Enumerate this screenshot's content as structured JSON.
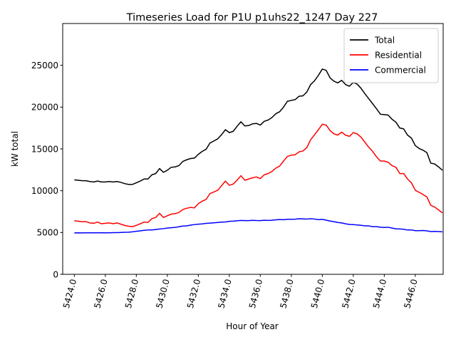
{
  "chart_data": {
    "type": "line",
    "title": "Timeseries Load for P1U p1uhs22_1247  Day 227",
    "xlabel": "Hour of Year",
    "ylabel": "kW total",
    "xlim": [
      5423.25,
      5447.8
    ],
    "ylim": [
      0,
      30000
    ],
    "xticks": [
      5424,
      5426,
      5428,
      5430,
      5432,
      5434,
      5436,
      5438,
      5440,
      5442,
      5444,
      5446
    ],
    "xtick_labels": [
      "5424.0",
      "5426.0",
      "5428.0",
      "5430.0",
      "5432.0",
      "5434.0",
      "5436.0",
      "5438.0",
      "5440.0",
      "5442.0",
      "5444.0",
      "5446.0"
    ],
    "yticks": [
      0,
      5000,
      10000,
      15000,
      20000,
      25000
    ],
    "ytick_labels": [
      "0",
      "5000",
      "10000",
      "15000",
      "20000",
      "25000"
    ],
    "legend_position": "top-right",
    "x": [
      5424.0,
      5424.25,
      5424.5,
      5424.75,
      5425.0,
      5425.25,
      5425.5,
      5425.75,
      5426.0,
      5426.25,
      5426.5,
      5426.75,
      5427.0,
      5427.25,
      5427.5,
      5427.75,
      5428.0,
      5428.25,
      5428.5,
      5428.75,
      5429.0,
      5429.25,
      5429.5,
      5429.75,
      5430.0,
      5430.25,
      5430.5,
      5430.75,
      5431.0,
      5431.25,
      5431.5,
      5431.75,
      5432.0,
      5432.25,
      5432.5,
      5432.75,
      5433.0,
      5433.25,
      5433.5,
      5433.75,
      5434.0,
      5434.25,
      5434.5,
      5434.75,
      5435.0,
      5435.25,
      5435.5,
      5435.75,
      5436.0,
      5436.25,
      5436.5,
      5436.75,
      5437.0,
      5437.25,
      5437.5,
      5437.75,
      5438.0,
      5438.25,
      5438.5,
      5438.75,
      5439.0,
      5439.25,
      5439.5,
      5439.75,
      5440.0,
      5440.25,
      5440.5,
      5440.75,
      5441.0,
      5441.25,
      5441.5,
      5441.75,
      5442.0,
      5442.25,
      5442.5,
      5442.75,
      5443.0,
      5443.25,
      5443.5,
      5443.75,
      5444.0,
      5444.25,
      5444.5,
      5444.75,
      5445.0,
      5445.25,
      5445.5,
      5445.75,
      5446.0,
      5446.25,
      5446.5,
      5446.75,
      5447.0,
      5447.25,
      5447.5,
      5447.75
    ],
    "series": [
      {
        "name": "Total",
        "color": "#000000",
        "values": [
          11300,
          11250,
          11200,
          11200,
          11100,
          11050,
          11150,
          11050,
          11050,
          11100,
          11050,
          11100,
          11000,
          10850,
          10750,
          10750,
          10950,
          11150,
          11400,
          11400,
          11900,
          12050,
          12650,
          12200,
          12450,
          12800,
          12850,
          13000,
          13500,
          13700,
          13850,
          13900,
          14350,
          14700,
          14950,
          15700,
          15950,
          16200,
          16700,
          17300,
          16950,
          17100,
          17700,
          18250,
          17750,
          17800,
          18000,
          18050,
          17850,
          18300,
          18450,
          18750,
          19200,
          19450,
          20000,
          20700,
          20800,
          20900,
          21300,
          21350,
          21800,
          22700,
          23150,
          23800,
          24550,
          24400,
          23500,
          23100,
          22900,
          23200,
          22700,
          22500,
          22950,
          22750,
          22250,
          21600,
          21000,
          20400,
          19800,
          19150,
          19100,
          19050,
          18550,
          18200,
          17500,
          17400,
          16650,
          16300,
          15400,
          15050,
          14850,
          14550,
          13300,
          13200,
          12850,
          12450
        ]
      },
      {
        "name": "Residential",
        "color": "#ff0000",
        "values": [
          6400,
          6350,
          6300,
          6300,
          6150,
          6100,
          6250,
          6050,
          6100,
          6150,
          6050,
          6150,
          6000,
          5850,
          5750,
          5700,
          5850,
          6050,
          6250,
          6200,
          6650,
          6800,
          7300,
          6800,
          7000,
          7200,
          7250,
          7400,
          7750,
          7900,
          8000,
          7950,
          8450,
          8750,
          8950,
          9650,
          9850,
          10050,
          10600,
          11150,
          10650,
          10800,
          11250,
          11800,
          11250,
          11400,
          11550,
          11650,
          11450,
          11900,
          12050,
          12300,
          12700,
          12950,
          13550,
          14100,
          14250,
          14300,
          14650,
          14750,
          15150,
          16100,
          16700,
          17300,
          17950,
          17850,
          17200,
          16800,
          16650,
          17000,
          16650,
          16500,
          16950,
          16800,
          16400,
          15800,
          15200,
          14700,
          14050,
          13550,
          13550,
          13400,
          13000,
          12800,
          12050,
          12050,
          11400,
          10950,
          10050,
          9800,
          9550,
          9250,
          8250,
          8050,
          7700,
          7350
        ]
      },
      {
        "name": "Commercial",
        "color": "#0000ff",
        "values": [
          4950,
          4960,
          4950,
          4960,
          4970,
          4960,
          4960,
          4980,
          4960,
          4970,
          4990,
          4990,
          5010,
          5030,
          5040,
          5080,
          5150,
          5200,
          5260,
          5300,
          5310,
          5360,
          5420,
          5460,
          5530,
          5570,
          5610,
          5690,
          5770,
          5800,
          5880,
          5950,
          6000,
          6030,
          6090,
          6130,
          6160,
          6200,
          6240,
          6260,
          6340,
          6360,
          6400,
          6450,
          6420,
          6420,
          6460,
          6430,
          6420,
          6470,
          6450,
          6470,
          6520,
          6550,
          6530,
          6580,
          6580,
          6590,
          6650,
          6640,
          6610,
          6650,
          6610,
          6540,
          6570,
          6480,
          6370,
          6300,
          6200,
          6150,
          6040,
          5970,
          5950,
          5900,
          5860,
          5800,
          5790,
          5700,
          5700,
          5640,
          5600,
          5630,
          5530,
          5440,
          5420,
          5390,
          5300,
          5310,
          5220,
          5220,
          5240,
          5200,
          5110,
          5140,
          5110,
          5080
        ]
      }
    ]
  }
}
